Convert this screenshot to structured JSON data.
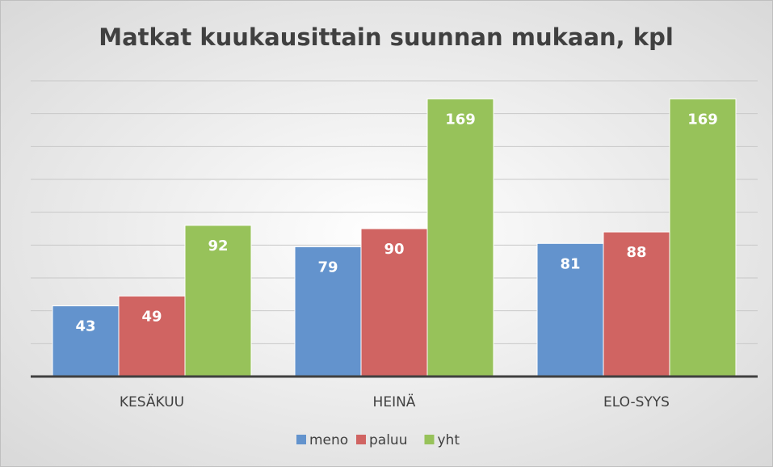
{
  "chart_data": {
    "type": "bar",
    "title": "Matkat kuukausittain suunnan mukaan, kpl",
    "categories": [
      "KESÄKUU",
      "HEINÄ",
      "ELO-SYYS"
    ],
    "series": [
      {
        "name": "meno",
        "color": "#6393cd",
        "values": [
          43,
          79,
          81
        ]
      },
      {
        "name": "paluu",
        "color": "#d06462",
        "values": [
          49,
          90,
          88
        ]
      },
      {
        "name": "yht",
        "color": "#97c25a",
        "values": [
          92,
          169,
          169
        ]
      }
    ],
    "ylim": [
      0,
      180
    ],
    "yticks": [
      0,
      20,
      40,
      60,
      80,
      100,
      120,
      140,
      160,
      180
    ],
    "grid": true,
    "legend": "bottom"
  }
}
